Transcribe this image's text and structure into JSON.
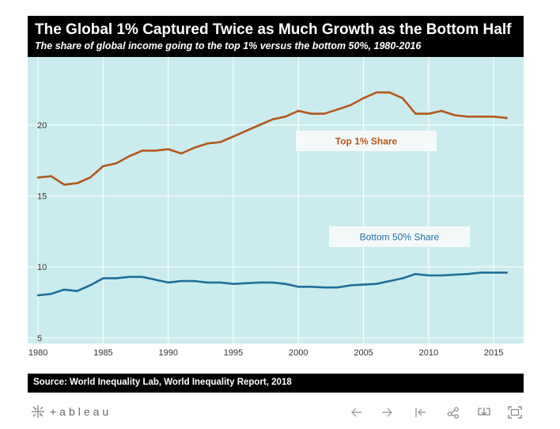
{
  "chart_data": {
    "type": "line",
    "title": "The Global 1% Captured Twice as Much Growth as the Bottom Half",
    "subtitle": "The share of global income going to the top 1% versus the bottom 50%, 1980-2016",
    "xlabel": "",
    "ylabel": "",
    "xlim": [
      1979.2,
      2017.3
    ],
    "ylim": [
      4.6,
      24.8
    ],
    "x_ticks": [
      1980,
      1985,
      1990,
      1995,
      2000,
      2005,
      2010,
      2015
    ],
    "y_ticks": [
      5,
      10,
      15,
      20
    ],
    "x": [
      1980,
      1981,
      1982,
      1983,
      1984,
      1985,
      1986,
      1987,
      1988,
      1989,
      1990,
      1991,
      1992,
      1993,
      1994,
      1995,
      1996,
      1997,
      1998,
      1999,
      2000,
      2001,
      2002,
      2003,
      2004,
      2005,
      2006,
      2007,
      2008,
      2009,
      2010,
      2011,
      2012,
      2013,
      2014,
      2015,
      2016
    ],
    "series": [
      {
        "name": "Top 1% Share",
        "label": "Top 1% Share",
        "color": "#b5561a",
        "values": [
          16.3,
          16.4,
          15.8,
          15.9,
          16.3,
          17.1,
          17.3,
          17.8,
          18.2,
          18.2,
          18.3,
          18.0,
          18.4,
          18.7,
          18.8,
          19.2,
          19.6,
          20.0,
          20.4,
          20.6,
          21.0,
          20.8,
          20.8,
          21.1,
          21.4,
          21.9,
          22.3,
          22.3,
          21.9,
          20.8,
          20.8,
          21.0,
          20.7,
          20.6,
          20.6,
          20.6,
          20.5
        ]
      },
      {
        "name": "Bottom 50% Share",
        "label": "Bottom 50% Share",
        "color": "#1f6e9c",
        "values": [
          8.0,
          8.1,
          8.4,
          8.3,
          8.7,
          9.2,
          9.2,
          9.3,
          9.3,
          9.1,
          8.9,
          9.0,
          9.0,
          8.9,
          8.9,
          8.8,
          8.85,
          8.9,
          8.9,
          8.8,
          8.6,
          8.6,
          8.55,
          8.55,
          8.7,
          8.75,
          8.8,
          9.0,
          9.2,
          9.5,
          9.4,
          9.4,
          9.45,
          9.5,
          9.6,
          9.6,
          9.6
        ]
      }
    ],
    "background_color": "#cbecee"
  },
  "source": "Source: World Inequality Lab, World Inequality Report, 2018",
  "footer": {
    "logo_text": "+ableau",
    "logo_icon": "tableau-logo-icon"
  },
  "toolbar": {
    "icons": [
      "undo-arrow-icon",
      "redo-arrow-icon",
      "revert-icon",
      "share-icon",
      "download-icon",
      "fullscreen-icon"
    ]
  }
}
